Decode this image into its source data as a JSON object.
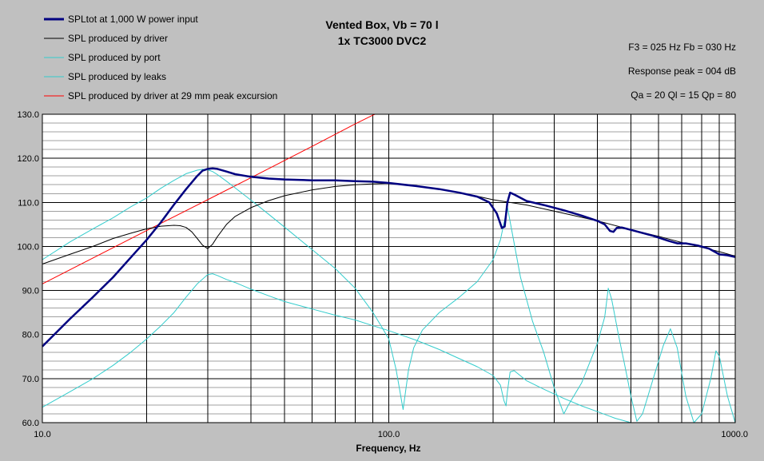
{
  "chart_data": {
    "type": "line",
    "title_lines": [
      "Vented Box, Vb = 70 l",
      "1x TC3000 DVC2"
    ],
    "info_lines": [
      "F3 = 025 Hz  Fb = 030 Hz",
      "Response peak = 004 dB",
      "Qa = 20  Ql = 15  Qp = 80"
    ],
    "xlabel": "Frequency, Hz",
    "ylabel": "",
    "xscale": "log",
    "xlim": [
      10,
      1000
    ],
    "ylim": [
      60,
      130
    ],
    "x_tick_labels": [
      {
        "value": 10,
        "label": "10.0"
      },
      {
        "value": 100,
        "label": "100.0"
      },
      {
        "value": 1000,
        "label": "1000.0"
      }
    ],
    "y_tick_labels": [
      {
        "value": 60,
        "label": "60.0"
      },
      {
        "value": 70,
        "label": "70.0"
      },
      {
        "value": 80,
        "label": "80.0"
      },
      {
        "value": 90,
        "label": "90.0"
      },
      {
        "value": 100,
        "label": "100.0"
      },
      {
        "value": 110,
        "label": "110.0"
      },
      {
        "value": 120,
        "label": "120.0"
      },
      {
        "value": 130,
        "label": "130.0"
      }
    ],
    "grid": true,
    "legend_position": "top-left",
    "series": [
      {
        "name": "SPLtot at 1,000 W power input",
        "color": "#000080",
        "points": [
          [
            10,
            77.3
          ],
          [
            12,
            83.5
          ],
          [
            14,
            88.5
          ],
          [
            16,
            93
          ],
          [
            18,
            97.5
          ],
          [
            20,
            101.5
          ],
          [
            22,
            105.5
          ],
          [
            24,
            109.5
          ],
          [
            26,
            113
          ],
          [
            28,
            116
          ],
          [
            29,
            117.2
          ],
          [
            30,
            117.6
          ],
          [
            31,
            117.7
          ],
          [
            32,
            117.6
          ],
          [
            34,
            117
          ],
          [
            36,
            116.4
          ],
          [
            40,
            115.8
          ],
          [
            45,
            115.4
          ],
          [
            50,
            115.2
          ],
          [
            60,
            115
          ],
          [
            70,
            115
          ],
          [
            80,
            114.8
          ],
          [
            90,
            114.7
          ],
          [
            100,
            114.4
          ],
          [
            120,
            113.7
          ],
          [
            140,
            113
          ],
          [
            160,
            112.2
          ],
          [
            180,
            111.3
          ],
          [
            195,
            110
          ],
          [
            205,
            107.5
          ],
          [
            212,
            104.2
          ],
          [
            216,
            104.5
          ],
          [
            220,
            110
          ],
          [
            224,
            112.2
          ],
          [
            230,
            111.8
          ],
          [
            250,
            110.3
          ],
          [
            280,
            109.4
          ],
          [
            320,
            108.2
          ],
          [
            360,
            107
          ],
          [
            400,
            105.8
          ],
          [
            420,
            105
          ],
          [
            435,
            103.5
          ],
          [
            445,
            103.3
          ],
          [
            455,
            104.2
          ],
          [
            470,
            104.3
          ],
          [
            520,
            103.4
          ],
          [
            580,
            102.4
          ],
          [
            640,
            101.3
          ],
          [
            680,
            100.7
          ],
          [
            720,
            100.7
          ],
          [
            780,
            100.2
          ],
          [
            840,
            99.5
          ],
          [
            900,
            98.2
          ],
          [
            950,
            98
          ],
          [
            1000,
            97.6
          ]
        ]
      },
      {
        "name": "SPL produced by driver",
        "color": "#000000",
        "points": [
          [
            10,
            96
          ],
          [
            12,
            98.2
          ],
          [
            14,
            100
          ],
          [
            16,
            101.8
          ],
          [
            18,
            103
          ],
          [
            20,
            104
          ],
          [
            22,
            104.6
          ],
          [
            24,
            104.8
          ],
          [
            25,
            104.7
          ],
          [
            26,
            104.3
          ],
          [
            27,
            103.3
          ],
          [
            28,
            101.8
          ],
          [
            29,
            100.3
          ],
          [
            30,
            99.5
          ],
          [
            31,
            100.5
          ],
          [
            32,
            102.2
          ],
          [
            34,
            105
          ],
          [
            36,
            106.8
          ],
          [
            40,
            108.8
          ],
          [
            45,
            110.4
          ],
          [
            50,
            111.5
          ],
          [
            60,
            112.8
          ],
          [
            70,
            113.6
          ],
          [
            80,
            114
          ],
          [
            90,
            114.2
          ],
          [
            100,
            114.3
          ],
          [
            120,
            113.8
          ],
          [
            140,
            113
          ],
          [
            160,
            112.2
          ],
          [
            180,
            111.4
          ],
          [
            200,
            110.6
          ],
          [
            250,
            109.4
          ],
          [
            300,
            108
          ],
          [
            400,
            105.8
          ],
          [
            500,
            103.8
          ],
          [
            600,
            102.3
          ],
          [
            700,
            100.9
          ],
          [
            800,
            99.8
          ],
          [
            900,
            98.8
          ],
          [
            1000,
            97.8
          ]
        ]
      },
      {
        "name": "SPL produced by port",
        "color": "#33CCCC",
        "points": [
          [
            10,
            97
          ],
          [
            12,
            101
          ],
          [
            14,
            104
          ],
          [
            16,
            106.5
          ],
          [
            18,
            109
          ],
          [
            20,
            111
          ],
          [
            22,
            113.2
          ],
          [
            24,
            115
          ],
          [
            26,
            116.5
          ],
          [
            28,
            117.3
          ],
          [
            29,
            117.5
          ],
          [
            30,
            117.4
          ],
          [
            31,
            117
          ],
          [
            32,
            116.3
          ],
          [
            34,
            114.8
          ],
          [
            36,
            113.3
          ],
          [
            40,
            110.5
          ],
          [
            45,
            107.3
          ],
          [
            50,
            104.4
          ],
          [
            60,
            99.3
          ],
          [
            70,
            95
          ],
          [
            80,
            90.5
          ],
          [
            90,
            85
          ],
          [
            95,
            82
          ],
          [
            100,
            79
          ],
          [
            105,
            72
          ],
          [
            110,
            63
          ],
          [
            114,
            72
          ],
          [
            118,
            77
          ],
          [
            125,
            81
          ],
          [
            140,
            85
          ],
          [
            160,
            88.5
          ],
          [
            180,
            92
          ],
          [
            200,
            97
          ],
          [
            210,
            101.5
          ],
          [
            220,
            109
          ],
          [
            226,
            104
          ],
          [
            240,
            93
          ],
          [
            260,
            83
          ],
          [
            280,
            76
          ],
          [
            300,
            68
          ],
          [
            320,
            62
          ],
          [
            330,
            64
          ],
          [
            360,
            69
          ],
          [
            400,
            78
          ],
          [
            420,
            84
          ],
          [
            430,
            90.5
          ],
          [
            440,
            88
          ],
          [
            460,
            80
          ],
          [
            480,
            73
          ],
          [
            500,
            66
          ],
          [
            520,
            60.3
          ],
          [
            540,
            62
          ],
          [
            580,
            70
          ],
          [
            620,
            77.5
          ],
          [
            650,
            81.3
          ],
          [
            680,
            77
          ],
          [
            720,
            66
          ],
          [
            760,
            60
          ],
          [
            800,
            62
          ],
          [
            850,
            70
          ],
          [
            880,
            76.3
          ],
          [
            900,
            75
          ],
          [
            950,
            66
          ],
          [
            1000,
            60
          ]
        ]
      },
      {
        "name": "SPL produced by leaks",
        "color": "#33CCCC",
        "points": [
          [
            10,
            63.5
          ],
          [
            12,
            67
          ],
          [
            14,
            70
          ],
          [
            16,
            73
          ],
          [
            18,
            76
          ],
          [
            20,
            79
          ],
          [
            22,
            82
          ],
          [
            24,
            85
          ],
          [
            26,
            88.5
          ],
          [
            28,
            91.5
          ],
          [
            30,
            93.6
          ],
          [
            31,
            93.8
          ],
          [
            32,
            93.4
          ],
          [
            34,
            92.5
          ],
          [
            36,
            91.8
          ],
          [
            40,
            90.3
          ],
          [
            45,
            88.8
          ],
          [
            50,
            87.5
          ],
          [
            60,
            85.8
          ],
          [
            70,
            84.4
          ],
          [
            80,
            83.3
          ],
          [
            90,
            82
          ],
          [
            100,
            80.9
          ],
          [
            120,
            78.7
          ],
          [
            140,
            76.6
          ],
          [
            160,
            74.5
          ],
          [
            180,
            72.7
          ],
          [
            200,
            70.7
          ],
          [
            210,
            68.5
          ],
          [
            215,
            65
          ],
          [
            218,
            63.8
          ],
          [
            220,
            67
          ],
          [
            224,
            71.5
          ],
          [
            230,
            71.8
          ],
          [
            250,
            69.5
          ],
          [
            280,
            67.6
          ],
          [
            320,
            65.5
          ],
          [
            360,
            63.8
          ],
          [
            400,
            62.5
          ],
          [
            450,
            61
          ],
          [
            500,
            60
          ]
        ]
      },
      {
        "name": "SPL produced by driver at 29 mm peak excursion",
        "color": "#FF0000",
        "points": [
          [
            10,
            91.5
          ],
          [
            20,
            103.6
          ],
          [
            30,
            110.6
          ],
          [
            40,
            115.6
          ],
          [
            60,
            122.7
          ],
          [
            80,
            127.8
          ],
          [
            90,
            129.8
          ],
          [
            91.2,
            130
          ]
        ]
      }
    ]
  }
}
